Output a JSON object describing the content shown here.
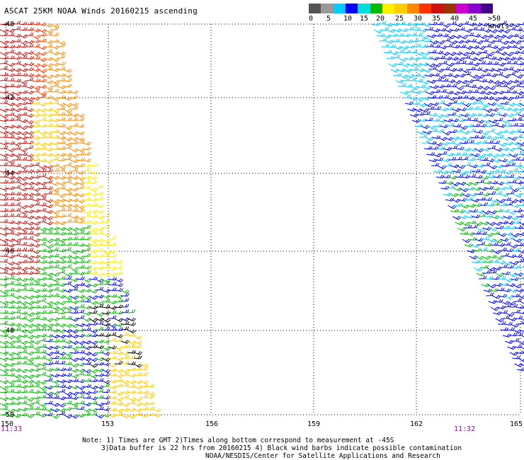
{
  "header": {
    "title": "ASCAT 25KM NOAA Winds 20160215 ascending"
  },
  "legend": {
    "colors": [
      "#555555",
      "#999999",
      "#00ccff",
      "#0000ff",
      "#00dddd",
      "#00bb00",
      "#ffee00",
      "#ffcc00",
      "#ff8800",
      "#ff3300",
      "#cc1111",
      "#993300",
      "#cc00cc",
      "#8800cc",
      "#440088"
    ],
    "labels": [
      "0",
      "5",
      "10",
      "15",
      "20",
      "25",
      "30",
      "35",
      "40",
      "45",
      ">50 knots"
    ]
  },
  "map": {
    "lon_ticks": [
      "150",
      "153",
      "156",
      "159",
      "162",
      "165"
    ],
    "lat_ticks": [
      "-40",
      "-42",
      "-44",
      "-46",
      "-48",
      "-50"
    ],
    "time_left": "11:33",
    "time_right": "11:32"
  },
  "notes": {
    "line1": "Note: 1) Times are GMT 2)Times along bottom correspond to measurement at -45S",
    "line2": "3)Data buffer is 22 hrs from 20160215 4) Black wind barbs indicate possible contamination",
    "line3": "NOAA/NESDIS/Center for Satellite Applications and Research"
  }
}
